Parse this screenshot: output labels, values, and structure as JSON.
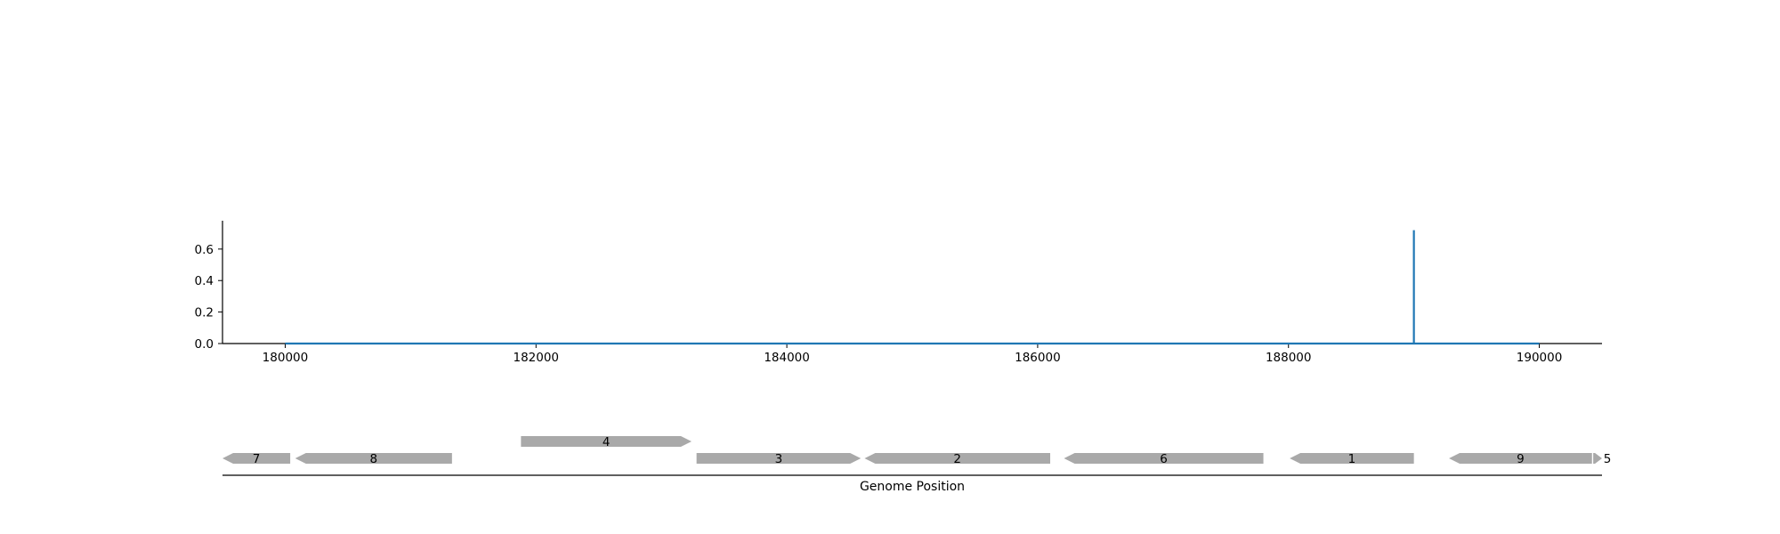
{
  "chart_data": [
    {
      "type": "line",
      "xlim": [
        179500,
        190500
      ],
      "ylim": [
        0,
        0.78
      ],
      "x_ticks": [
        180000,
        182000,
        184000,
        186000,
        188000,
        190000
      ],
      "y_ticks": [
        0.0,
        0.2,
        0.4,
        0.6
      ],
      "x_tick_labels": [
        "180000",
        "182000",
        "184000",
        "186000",
        "188000",
        "190000"
      ],
      "y_tick_labels": [
        "0.0",
        "0.2",
        "0.4",
        "0.6"
      ],
      "series": [
        {
          "color": "#1f77b4",
          "x": [
            180000,
            189000,
            189000,
            189000,
            190000
          ],
          "y": [
            0,
            0,
            0.72,
            0,
            0
          ]
        }
      ]
    },
    {
      "type": "gene-track",
      "xlim": [
        179500,
        190500
      ],
      "xlabel": "Genome Position",
      "feature_color": "#a9a9a9",
      "features": [
        {
          "label": "7",
          "start": 179500,
          "end": 180040,
          "strand": "-",
          "row": 0
        },
        {
          "label": "8",
          "start": 180080,
          "end": 181330,
          "strand": "-",
          "row": 0
        },
        {
          "label": "4",
          "start": 181880,
          "end": 183240,
          "strand": "+",
          "row": 1
        },
        {
          "label": "3",
          "start": 183280,
          "end": 184590,
          "strand": "+",
          "row": 0
        },
        {
          "label": "2",
          "start": 184620,
          "end": 186100,
          "strand": "-",
          "row": 0
        },
        {
          "label": "6",
          "start": 186210,
          "end": 187800,
          "strand": "-",
          "row": 0
        },
        {
          "label": "1",
          "start": 188010,
          "end": 189000,
          "strand": "-",
          "row": 0
        },
        {
          "label": "9",
          "start": 189280,
          "end": 190420,
          "strand": "-",
          "row": 0
        },
        {
          "label": "5",
          "start": 190430,
          "end": 190500,
          "strand": "+",
          "row": 0
        }
      ]
    }
  ]
}
